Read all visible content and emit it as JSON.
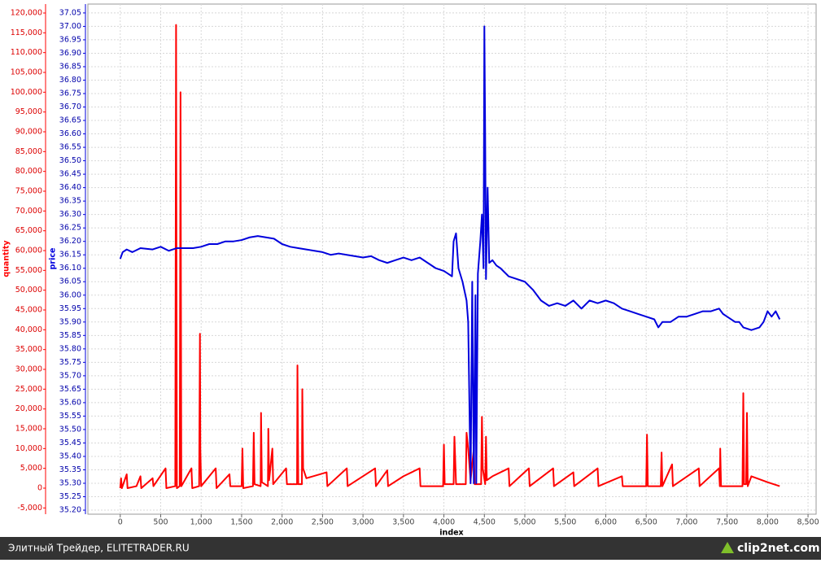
{
  "chart_data": {
    "type": "line",
    "xlabel": "index",
    "ylabel": "quantity",
    "y2label": "price",
    "grid": true,
    "xlim": [
      -400,
      8600
    ],
    "xticks": [
      0,
      500,
      {
        "value": 1000,
        "label": "1,000"
      },
      {
        "value": 1500,
        "label": "1,500"
      },
      {
        "value": 2000,
        "label": "2,000"
      },
      {
        "value": 2500,
        "label": "2,500"
      },
      {
        "value": 3000,
        "label": "3,000"
      },
      {
        "value": 3500,
        "label": "3,500"
      },
      {
        "value": 4000,
        "label": "4,000"
      },
      {
        "value": 4500,
        "label": "4,500"
      },
      {
        "value": 5000,
        "label": "5,000"
      },
      {
        "value": 5500,
        "label": "5,500"
      },
      {
        "value": 6000,
        "label": "6,000"
      },
      {
        "value": 6500,
        "label": "6,500"
      },
      {
        "value": 7000,
        "label": "7,000"
      },
      {
        "value": 7500,
        "label": "7,500"
      },
      {
        "value": 8000,
        "label": "8,000"
      },
      {
        "value": 8500,
        "label": "8,500"
      }
    ],
    "ylim": [
      -6575,
      122260
    ],
    "yticks": [
      {
        "value": -5000,
        "label": "-5,000"
      },
      0,
      {
        "value": 5000,
        "label": "5,000"
      },
      {
        "value": 10000,
        "label": "10,000"
      },
      {
        "value": 15000,
        "label": "15,000"
      },
      {
        "value": 20000,
        "label": "20,000"
      },
      {
        "value": 25000,
        "label": "25,000"
      },
      {
        "value": 30000,
        "label": "30,000"
      },
      {
        "value": 35000,
        "label": "35,000"
      },
      {
        "value": 40000,
        "label": "40,000"
      },
      {
        "value": 45000,
        "label": "45,000"
      },
      {
        "value": 50000,
        "label": "50,000"
      },
      {
        "value": 55000,
        "label": "55,000"
      },
      {
        "value": 60000,
        "label": "60,000"
      },
      {
        "value": 65000,
        "label": "65,000"
      },
      {
        "value": 70000,
        "label": "70,000"
      },
      {
        "value": 75000,
        "label": "75,000"
      },
      {
        "value": 80000,
        "label": "80,000"
      },
      {
        "value": 85000,
        "label": "85,000"
      },
      {
        "value": 90000,
        "label": "90,000"
      },
      {
        "value": 95000,
        "label": "95,000"
      },
      {
        "value": 100000,
        "label": "100,000"
      },
      {
        "value": 105000,
        "label": "105,000"
      },
      {
        "value": 110000,
        "label": "110,000"
      },
      {
        "value": 115000,
        "label": "115,000"
      },
      {
        "value": 120000,
        "label": "120,000"
      }
    ],
    "y2lim": [
      35.185,
      37.083
    ],
    "y2ticks": [
      {
        "value": 35.2,
        "label": "35.20"
      },
      35.25,
      {
        "value": 35.3,
        "label": "35.30"
      },
      35.35,
      {
        "value": 35.4,
        "label": "35.40"
      },
      35.45,
      {
        "value": 35.5,
        "label": "35.50"
      },
      35.55,
      {
        "value": 35.6,
        "label": "35.60"
      },
      35.65,
      {
        "value": 35.7,
        "label": "35.70"
      },
      35.75,
      {
        "value": 35.8,
        "label": "35.80"
      },
      35.85,
      {
        "value": 35.9,
        "label": "35.90"
      },
      35.95,
      {
        "value": 36.0,
        "label": "36.00"
      },
      36.05,
      {
        "value": 36.1,
        "label": "36.10"
      },
      36.15,
      {
        "value": 36.2,
        "label": "36.20"
      },
      36.25,
      {
        "value": 36.3,
        "label": "36.30"
      },
      36.35,
      {
        "value": 36.4,
        "label": "36.40"
      },
      36.45,
      {
        "value": 36.5,
        "label": "36.50"
      },
      36.55,
      {
        "value": 36.6,
        "label": "36.60"
      },
      36.65,
      {
        "value": 36.7,
        "label": "36.70"
      },
      36.75,
      {
        "value": 36.8,
        "label": "36.80"
      },
      36.85,
      {
        "value": 36.9,
        "label": "36.90"
      },
      36.95,
      {
        "value": 37.0,
        "label": "37.00"
      },
      37.05
    ],
    "series": [
      {
        "name": "quantity",
        "color": "#ff0000",
        "x": [
          0,
          10,
          20,
          80,
          90,
          200,
          250,
          260,
          400,
          410,
          560,
          570,
          680,
          690,
          700,
          735,
          745,
          755,
          880,
          890,
          975,
          985,
          990,
          1000,
          1180,
          1190,
          1350,
          1360,
          1500,
          1510,
          1520,
          1640,
          1650,
          1660,
          1735,
          1740,
          1750,
          1825,
          1830,
          1840,
          1880,
          1890,
          2050,
          2060,
          2185,
          2190,
          2200,
          2245,
          2250,
          2260,
          2300,
          2550,
          2560,
          2800,
          2810,
          3150,
          3160,
          3300,
          3310,
          3500,
          3700,
          3710,
          3990,
          4000,
          4010,
          4120,
          4130,
          4140,
          4150,
          4270,
          4280,
          4300,
          4330,
          4370,
          4380,
          4460,
          4470,
          4480,
          4510,
          4520,
          4530,
          4600,
          4800,
          4810,
          5050,
          5060,
          5350,
          5360,
          5600,
          5610,
          5900,
          5910,
          6200,
          6210,
          6500,
          6510,
          6520,
          6680,
          6690,
          6700,
          6820,
          6830,
          7150,
          7160,
          7400,
          7410,
          7415,
          7425,
          7690,
          7700,
          7710,
          7735,
          7745,
          7755,
          7800,
          8000,
          8150
        ],
        "values": [
          0,
          2500,
          0,
          3500,
          0,
          500,
          3000,
          0,
          2500,
          500,
          5000,
          0,
          500,
          117000,
          0,
          500,
          100000,
          500,
          5000,
          0,
          500,
          39000,
          10000,
          500,
          5000,
          0,
          3500,
          500,
          500,
          10000,
          0,
          500,
          14000,
          1000,
          500,
          19000,
          1500,
          500,
          15000,
          2000,
          10000,
          1000,
          5000,
          1000,
          1000,
          31000,
          1000,
          1000,
          25000,
          5000,
          2500,
          4000,
          500,
          5000,
          500,
          5000,
          500,
          4500,
          500,
          3000,
          5000,
          500,
          500,
          11000,
          1000,
          1000,
          13000,
          7000,
          1000,
          1000,
          14000,
          10000,
          2000,
          10000,
          1000,
          1000,
          18000,
          5000,
          1000,
          13000,
          2000,
          3000,
          5000,
          500,
          5000,
          500,
          5000,
          500,
          4000,
          500,
          5000,
          500,
          3000,
          500,
          500,
          13500,
          500,
          500,
          9000,
          500,
          6000,
          500,
          5000,
          500,
          5000,
          500,
          10000,
          500,
          500,
          24000,
          1000,
          1000,
          19000,
          500,
          3000,
          1500,
          500
        ]
      },
      {
        "name": "price",
        "color": "#0000dd",
        "axis": "y2",
        "x": [
          0,
          30,
          80,
          150,
          250,
          400,
          500,
          600,
          650,
          700,
          800,
          900,
          1000,
          1100,
          1200,
          1300,
          1400,
          1500,
          1600,
          1700,
          1800,
          1900,
          2000,
          2100,
          2200,
          2300,
          2400,
          2500,
          2600,
          2700,
          2800,
          2900,
          3000,
          3100,
          3200,
          3300,
          3400,
          3500,
          3600,
          3700,
          3800,
          3900,
          4000,
          4050,
          4100,
          4120,
          4150,
          4180,
          4230,
          4280,
          4300,
          4330,
          4350,
          4370,
          4390,
          4400,
          4420,
          4450,
          4470,
          4490,
          4500,
          4510,
          4520,
          4540,
          4560,
          4600,
          4650,
          4700,
          4800,
          4900,
          5000,
          5100,
          5200,
          5300,
          5400,
          5500,
          5600,
          5700,
          5800,
          5900,
          6000,
          6100,
          6200,
          6300,
          6400,
          6500,
          6600,
          6650,
          6700,
          6800,
          6900,
          7000,
          7100,
          7200,
          7300,
          7400,
          7450,
          7500,
          7600,
          7650,
          7700,
          7800,
          7900,
          7950,
          8000,
          8050,
          8100,
          8150
        ],
        "values": [
          36.135,
          36.16,
          36.17,
          36.16,
          36.175,
          36.17,
          36.18,
          36.165,
          36.17,
          36.175,
          36.175,
          36.175,
          36.18,
          36.19,
          36.19,
          36.2,
          36.2,
          36.205,
          36.215,
          36.22,
          36.215,
          36.21,
          36.19,
          36.18,
          36.175,
          36.17,
          36.165,
          36.16,
          36.15,
          36.155,
          36.15,
          36.145,
          36.14,
          36.145,
          36.13,
          36.12,
          36.13,
          36.14,
          36.13,
          36.14,
          36.12,
          36.1,
          36.09,
          36.08,
          36.07,
          36.2,
          36.23,
          36.1,
          36.05,
          35.98,
          35.9,
          35.3,
          36.05,
          35.3,
          36.0,
          35.3,
          36.08,
          36.2,
          36.3,
          36.1,
          37.0,
          36.6,
          36.06,
          36.4,
          36.12,
          36.13,
          36.11,
          36.1,
          36.07,
          36.06,
          36.05,
          36.02,
          35.98,
          35.96,
          35.97,
          35.96,
          35.98,
          35.95,
          35.98,
          35.97,
          35.98,
          35.97,
          35.95,
          35.94,
          35.93,
          35.92,
          35.91,
          35.88,
          35.9,
          35.9,
          35.92,
          35.92,
          35.93,
          35.94,
          35.94,
          35.95,
          35.93,
          35.92,
          35.9,
          35.9,
          35.88,
          35.87,
          35.88,
          35.9,
          35.94,
          35.92,
          35.94,
          35.91
        ]
      }
    ]
  },
  "footer": {
    "text": "Элитный Трейдер, ELITETRADER.RU",
    "logo": "clip2net.com"
  }
}
